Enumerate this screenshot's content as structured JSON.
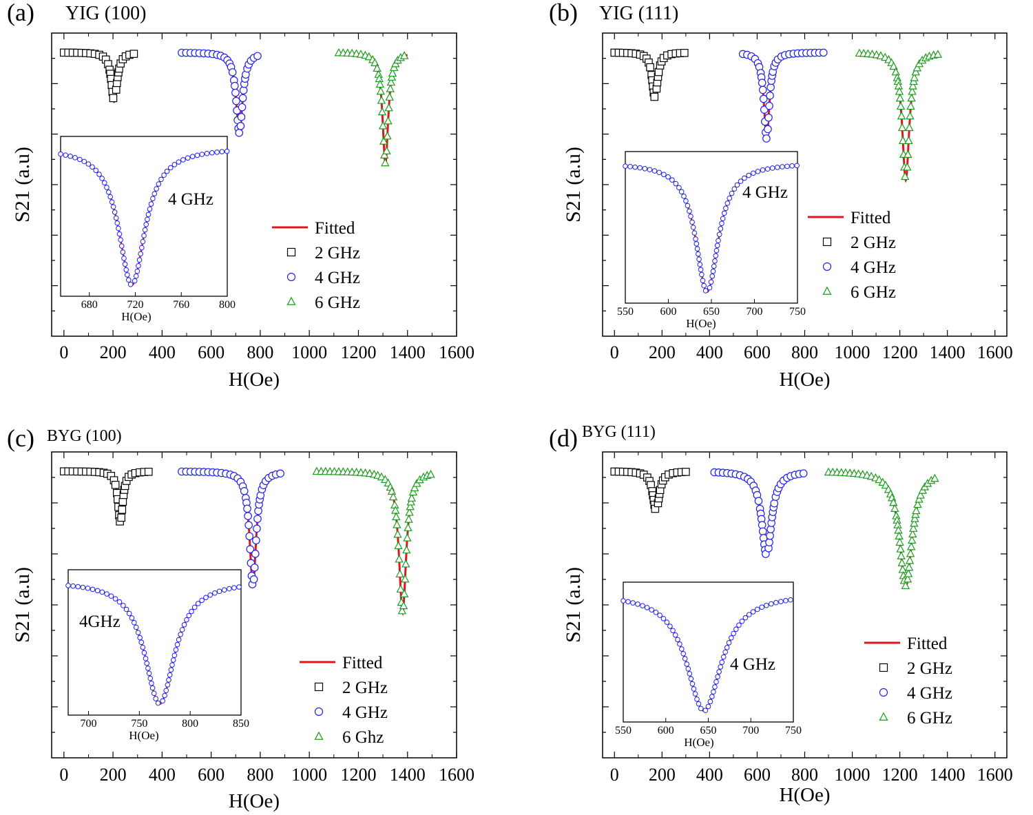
{
  "figure": {
    "colors": {
      "2": "#000000",
      "4": "#1f1ff0",
      "6": "#1a9a1a",
      "fit": "#e0161c"
    }
  },
  "chart_data": [
    {
      "type": "line",
      "label": "(a)",
      "title": "YIG (100)",
      "xlabel": "H(Oe)",
      "ylabel": "S21 (a.u)",
      "xlim": [
        -50,
        1600
      ],
      "xticks": [
        "0",
        "200",
        "400",
        "600",
        "800",
        "1000",
        "1200",
        "1400",
        "1600"
      ],
      "legend": [
        "Fitted",
        "2 GHz",
        "4 GHz",
        "6 GHz"
      ],
      "legend_position": "right-center",
      "series": [
        {
          "name": "2 GHz",
          "marker": "square",
          "x_start": 0,
          "x_end": 300,
          "center": 205,
          "width": 14,
          "depth": 0.6
        },
        {
          "name": "4 GHz",
          "marker": "circle",
          "x_start": 480,
          "x_end": 800,
          "center": 715,
          "width": 16,
          "depth": 0.98
        },
        {
          "name": "6 GHz",
          "marker": "triangle",
          "x_start": 1120,
          "x_end": 1400,
          "center": 1310,
          "width": 14,
          "depth": 1.35
        }
      ],
      "inset": {
        "xlabel": "H(Oe)",
        "annotation": "4 GHz",
        "xlim": [
          655,
          800
        ],
        "xticks": [
          680,
          720,
          760,
          800
        ],
        "center": 717,
        "width": 14
      }
    },
    {
      "type": "line",
      "label": "(b)",
      "title": "YIG (111)",
      "xlabel": "H(Oe)",
      "ylabel": "S21 (a.u)",
      "xlim": [
        -50,
        1650
      ],
      "xticks": [
        "0",
        "200",
        "400",
        "600",
        "800",
        "1000",
        "1200",
        "1400",
        "1600"
      ],
      "legend": [
        "Fitted",
        "2 GHz",
        "4 GHz",
        "6 GHz"
      ],
      "legend_position": "right-center",
      "series": [
        {
          "name": "2 GHz",
          "marker": "square",
          "x_start": 0,
          "x_end": 300,
          "center": 170,
          "width": 14,
          "depth": 0.55
        },
        {
          "name": "4 GHz",
          "marker": "circle",
          "x_start": 540,
          "x_end": 880,
          "center": 640,
          "width": 14,
          "depth": 1.05
        },
        {
          "name": "6 GHz",
          "marker": "triangle",
          "x_start": 1030,
          "x_end": 1360,
          "center": 1225,
          "width": 18,
          "depth": 1.55
        }
      ],
      "inset": {
        "xlabel": "H(Oe)",
        "annotation": "4 GHz",
        "xlim": [
          550,
          750
        ],
        "xticks": [
          550,
          600,
          650,
          700,
          750
        ],
        "center": 645,
        "width": 16
      }
    },
    {
      "type": "line",
      "label": "(c)",
      "title": "BYG (100)",
      "xlabel": "H(Oe)",
      "ylabel": "S21 (a.u)",
      "xlim": [
        -50,
        1600
      ],
      "xticks": [
        "0",
        "200",
        "400",
        "600",
        "800",
        "1000",
        "1200",
        "1400",
        "1600"
      ],
      "legend": [
        "Fitted",
        "2 GHz",
        "4 GHz",
        "6 Ghz"
      ],
      "legend_position": "bottom-right",
      "series": [
        {
          "name": "2 GHz",
          "marker": "square",
          "x_start": 0,
          "x_end": 350,
          "center": 230,
          "width": 12,
          "depth": 0.62
        },
        {
          "name": "4 GHz",
          "marker": "circle",
          "x_start": 480,
          "x_end": 890,
          "center": 770,
          "width": 16,
          "depth": 1.38
        },
        {
          "name": "6 Ghz",
          "marker": "triangle",
          "x_start": 1030,
          "x_end": 1500,
          "center": 1380,
          "width": 18,
          "depth": 1.7
        }
      ],
      "inset": {
        "xlabel": "H(Oe)",
        "annotation": "4GHz",
        "xlim": [
          680,
          850
        ],
        "xticks": [
          700,
          750,
          800,
          850
        ],
        "center": 770,
        "width": 18
      }
    },
    {
      "type": "line",
      "label": "(d)",
      "title": "BYG (111)",
      "xlabel": "H(Oe)",
      "ylabel": "S21 (a.u)",
      "xlim": [
        -50,
        1650
      ],
      "xticks": [
        "0",
        "200",
        "400",
        "600",
        "800",
        "1000",
        "1200",
        "1400",
        "1600"
      ],
      "legend": [
        "Fitted",
        "2 GHz",
        "4 GHz",
        "6 GHz"
      ],
      "legend_position": "bottom-right",
      "series": [
        {
          "name": "2 GHz",
          "marker": "square",
          "x_start": 0,
          "x_end": 300,
          "center": 175,
          "width": 16,
          "depth": 0.48
        },
        {
          "name": "4 GHz",
          "marker": "circle",
          "x_start": 420,
          "x_end": 800,
          "center": 640,
          "width": 25,
          "depth": 1.02
        },
        {
          "name": "6 GHz",
          "marker": "triangle",
          "x_start": 900,
          "x_end": 1350,
          "center": 1225,
          "width": 32,
          "depth": 1.38
        }
      ],
      "inset": {
        "xlabel": "H(Oe)",
        "annotation": "4 GHz",
        "xlim": [
          550,
          750
        ],
        "xticks": [
          550,
          600,
          650,
          700,
          750
        ],
        "center": 645,
        "width": 25
      }
    }
  ]
}
